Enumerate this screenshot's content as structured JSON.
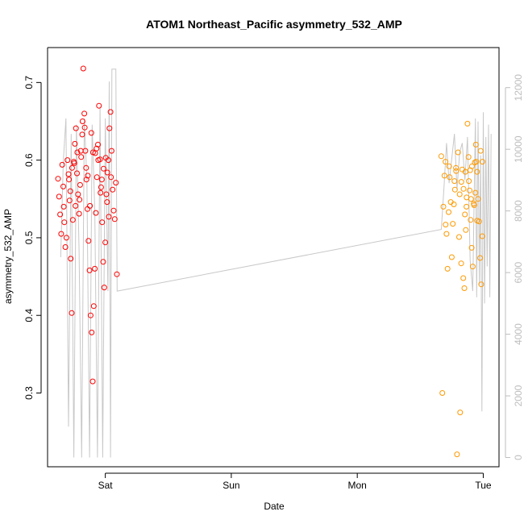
{
  "chart_data": {
    "type": "scatter",
    "title": "ATOM1 Northeast_Pacific asymmetry_532_AMP",
    "xlabel": "Date",
    "ylabel": "asymmetry_532_AMP",
    "x_ticks": [
      {
        "value": "2016-08-13",
        "label": "Sat"
      },
      {
        "value": "2016-08-14",
        "label": "Sun"
      },
      {
        "value": "2016-08-15",
        "label": "Mon"
      },
      {
        "value": "2016-08-16",
        "label": "Tue"
      }
    ],
    "xlim": [
      "2016-08-12T13:00",
      "2016-08-16T03:00"
    ],
    "ylim": [
      0.205,
      0.745
    ],
    "y_ticks": [
      0.3,
      0.4,
      0.5,
      0.6,
      0.7
    ],
    "y2lim": [
      -300,
      13300
    ],
    "y2_ticks": [
      0,
      2000,
      4000,
      6000,
      8000,
      10000,
      12000
    ],
    "grid": false,
    "series": [
      {
        "color": "#ff0000",
        "marker": "open-circle",
        "points": [
          [
            "2016-08-12T15:00",
            0.576
          ],
          [
            "2016-08-12T15:12",
            0.553
          ],
          [
            "2016-08-12T15:24",
            0.53
          ],
          [
            "2016-08-12T15:36",
            0.505
          ],
          [
            "2016-08-12T15:48",
            0.594
          ],
          [
            "2016-08-12T16:00",
            0.566
          ],
          [
            "2016-08-12T16:12",
            0.52
          ],
          [
            "2016-08-12T16:24",
            0.488
          ],
          [
            "2016-08-12T16:36",
            0.5
          ],
          [
            "2016-08-12T16:48",
            0.6
          ],
          [
            "2016-08-12T17:00",
            0.582
          ],
          [
            "2016-08-12T17:12",
            0.548
          ],
          [
            "2016-08-12T17:24",
            0.473
          ],
          [
            "2016-08-12T17:36",
            0.403
          ],
          [
            "2016-08-12T17:48",
            0.523
          ],
          [
            "2016-08-12T18:00",
            0.598
          ],
          [
            "2016-08-12T18:12",
            0.621
          ],
          [
            "2016-08-12T18:24",
            0.641
          ],
          [
            "2016-08-12T18:36",
            0.583
          ],
          [
            "2016-08-12T18:48",
            0.556
          ],
          [
            "2016-08-12T19:00",
            0.531
          ],
          [
            "2016-08-12T19:12",
            0.568
          ],
          [
            "2016-08-12T19:24",
            0.604
          ],
          [
            "2016-08-12T19:36",
            0.633
          ],
          [
            "2016-08-12T19:48",
            0.718
          ],
          [
            "2016-08-12T20:00",
            0.66
          ],
          [
            "2016-08-12T20:12",
            0.612
          ],
          [
            "2016-08-12T20:24",
            0.575
          ],
          [
            "2016-08-12T20:36",
            0.537
          ],
          [
            "2016-08-12T20:48",
            0.496
          ],
          [
            "2016-08-12T21:00",
            0.458
          ],
          [
            "2016-08-12T21:12",
            0.4
          ],
          [
            "2016-08-12T21:24",
            0.378
          ],
          [
            "2016-08-12T21:36",
            0.315
          ],
          [
            "2016-08-12T21:48",
            0.412
          ],
          [
            "2016-08-12T22:00",
            0.46
          ],
          [
            "2016-08-12T22:12",
            0.532
          ],
          [
            "2016-08-12T22:24",
            0.578
          ],
          [
            "2016-08-12T22:36",
            0.62
          ],
          [
            "2016-08-12T22:48",
            0.67
          ],
          [
            "2016-08-12T23:00",
            0.601
          ],
          [
            "2016-08-12T23:12",
            0.565
          ],
          [
            "2016-08-12T23:24",
            0.52
          ],
          [
            "2016-08-12T23:36",
            0.469
          ],
          [
            "2016-08-12T23:48",
            0.436
          ],
          [
            "2016-08-13T00:00",
            0.494
          ],
          [
            "2016-08-13T00:12",
            0.556
          ],
          [
            "2016-08-13T00:24",
            0.584
          ],
          [
            "2016-08-13T00:36",
            0.6
          ],
          [
            "2016-08-13T00:48",
            0.641
          ],
          [
            "2016-08-13T01:00",
            0.662
          ],
          [
            "2016-08-13T01:12",
            0.612
          ],
          [
            "2016-08-13T01:24",
            0.562
          ],
          [
            "2016-08-13T01:36",
            0.535
          ],
          [
            "2016-08-13T01:48",
            0.524
          ],
          [
            "2016-08-13T02:00",
            0.571
          ],
          [
            "2016-08-13T02:12",
            0.453
          ],
          [
            "2016-08-12T16:05",
            0.54
          ],
          [
            "2016-08-12T17:05",
            0.575
          ],
          [
            "2016-08-12T18:05",
            0.596
          ],
          [
            "2016-08-12T19:05",
            0.549
          ],
          [
            "2016-08-12T20:05",
            0.642
          ],
          [
            "2016-08-12T21:05",
            0.541
          ],
          [
            "2016-08-12T22:05",
            0.609
          ],
          [
            "2016-08-12T23:05",
            0.558
          ],
          [
            "2016-08-13T00:05",
            0.603
          ],
          [
            "2016-08-13T01:05",
            0.578
          ],
          [
            "2016-08-12T17:40",
            0.59
          ],
          [
            "2016-08-12T18:40",
            0.61
          ],
          [
            "2016-08-12T19:40",
            0.65
          ],
          [
            "2016-08-12T20:40",
            0.58
          ],
          [
            "2016-08-12T21:40",
            0.61
          ],
          [
            "2016-08-12T22:40",
            0.6
          ],
          [
            "2016-08-12T23:40",
            0.589
          ],
          [
            "2016-08-13T00:40",
            0.527
          ],
          [
            "2016-08-12T17:20",
            0.56
          ],
          [
            "2016-08-12T18:20",
            0.541
          ],
          [
            "2016-08-12T19:20",
            0.612
          ],
          [
            "2016-08-12T20:20",
            0.59
          ],
          [
            "2016-08-12T21:20",
            0.635
          ],
          [
            "2016-08-12T22:20",
            0.615
          ],
          [
            "2016-08-12T23:20",
            0.575
          ],
          [
            "2016-08-13T00:20",
            0.546
          ]
        ]
      },
      {
        "color": "#ff9900",
        "marker": "open-circle",
        "points": [
          [
            "2016-08-15T16:00",
            0.605
          ],
          [
            "2016-08-15T16:12",
            0.3
          ],
          [
            "2016-08-15T16:24",
            0.54
          ],
          [
            "2016-08-15T16:36",
            0.58
          ],
          [
            "2016-08-15T16:48",
            0.598
          ],
          [
            "2016-08-15T17:00",
            0.505
          ],
          [
            "2016-08-15T17:12",
            0.46
          ],
          [
            "2016-08-15T17:24",
            0.533
          ],
          [
            "2016-08-15T17:36",
            0.578
          ],
          [
            "2016-08-15T17:48",
            0.546
          ],
          [
            "2016-08-15T18:00",
            0.475
          ],
          [
            "2016-08-15T18:12",
            0.518
          ],
          [
            "2016-08-15T18:24",
            0.543
          ],
          [
            "2016-08-15T18:36",
            0.562
          ],
          [
            "2016-08-15T18:48",
            0.59
          ],
          [
            "2016-08-15T19:00",
            0.221
          ],
          [
            "2016-08-15T19:12",
            0.61
          ],
          [
            "2016-08-15T19:24",
            0.501
          ],
          [
            "2016-08-15T19:36",
            0.275
          ],
          [
            "2016-08-15T19:48",
            0.467
          ],
          [
            "2016-08-15T20:00",
            0.588
          ],
          [
            "2016-08-15T20:12",
            0.448
          ],
          [
            "2016-08-15T20:24",
            0.435
          ],
          [
            "2016-08-15T20:36",
            0.585
          ],
          [
            "2016-08-15T20:48",
            0.54
          ],
          [
            "2016-08-15T21:00",
            0.647
          ],
          [
            "2016-08-15T21:12",
            0.604
          ],
          [
            "2016-08-15T21:24",
            0.561
          ],
          [
            "2016-08-15T21:36",
            0.523
          ],
          [
            "2016-08-15T21:48",
            0.487
          ],
          [
            "2016-08-15T22:00",
            0.463
          ],
          [
            "2016-08-15T22:12",
            0.544
          ],
          [
            "2016-08-15T22:24",
            0.597
          ],
          [
            "2016-08-15T22:36",
            0.62
          ],
          [
            "2016-08-15T22:48",
            0.585
          ],
          [
            "2016-08-15T23:00",
            0.55
          ],
          [
            "2016-08-15T23:12",
            0.521
          ],
          [
            "2016-08-15T23:24",
            0.474
          ],
          [
            "2016-08-15T23:36",
            0.44
          ],
          [
            "2016-08-15T23:48",
            0.502
          ],
          [
            "2016-08-15T17:30",
            0.592
          ],
          [
            "2016-08-15T18:30",
            0.573
          ],
          [
            "2016-08-15T19:30",
            0.556
          ],
          [
            "2016-08-15T20:30",
            0.53
          ],
          [
            "2016-08-15T21:30",
            0.587
          ],
          [
            "2016-08-15T22:30",
            0.558
          ],
          [
            "2016-08-15T23:30",
            0.612
          ],
          [
            "2016-08-15T16:50",
            0.517
          ],
          [
            "2016-08-15T18:50",
            0.586
          ],
          [
            "2016-08-15T19:50",
            0.572
          ],
          [
            "2016-08-15T20:50",
            0.552
          ],
          [
            "2016-08-15T21:50",
            0.592
          ],
          [
            "2016-08-15T22:50",
            0.522
          ],
          [
            "2016-08-15T23:50",
            0.598
          ],
          [
            "2016-08-15T20:15",
            0.563
          ],
          [
            "2016-08-15T21:15",
            0.573
          ],
          [
            "2016-08-15T22:15",
            0.542
          ],
          [
            "2016-08-15T20:40",
            0.51
          ],
          [
            "2016-08-15T21:40",
            0.55
          ],
          [
            "2016-08-15T22:40",
            0.598
          ]
        ]
      }
    ],
    "overlay_line": {
      "axis": "right",
      "color": "#c8c8c8",
      "points": [
        [
          "2016-08-12T15:30",
          6500
        ],
        [
          "2016-08-12T16:00",
          9600
        ],
        [
          "2016-08-12T16:30",
          11000
        ],
        [
          "2016-08-12T17:00",
          1000
        ],
        [
          "2016-08-12T17:30",
          10500
        ],
        [
          "2016-08-12T18:00",
          0
        ],
        [
          "2016-08-12T18:30",
          10800
        ],
        [
          "2016-08-12T19:00",
          6700
        ],
        [
          "2016-08-12T19:30",
          0
        ],
        [
          "2016-08-12T20:00",
          11000
        ],
        [
          "2016-08-12T20:30",
          9000
        ],
        [
          "2016-08-12T21:00",
          0
        ],
        [
          "2016-08-12T21:30",
          10800
        ],
        [
          "2016-08-12T22:00",
          8000
        ],
        [
          "2016-08-12T22:30",
          0
        ],
        [
          "2016-08-12T23:00",
          11400
        ],
        [
          "2016-08-12T23:30",
          0
        ],
        [
          "2016-08-13T00:00",
          11000
        ],
        [
          "2016-08-13T00:30",
          5400
        ],
        [
          "2016-08-13T00:45",
          12200
        ],
        [
          "2016-08-13T01:00",
          0
        ],
        [
          "2016-08-13T01:15",
          12600
        ],
        [
          "2016-08-13T02:00",
          12600
        ],
        [
          "2016-08-13T02:15",
          5400
        ],
        [
          "2016-08-15T16:00",
          7400
        ],
        [
          "2016-08-15T16:30",
          8700
        ],
        [
          "2016-08-15T17:00",
          10200
        ],
        [
          "2016-08-15T17:30",
          8900
        ],
        [
          "2016-08-15T18:00",
          9700
        ],
        [
          "2016-08-15T18:30",
          10500
        ],
        [
          "2016-08-15T19:00",
          8700
        ],
        [
          "2016-08-15T19:30",
          9900
        ],
        [
          "2016-08-15T20:00",
          10200
        ],
        [
          "2016-08-15T20:30",
          9000
        ],
        [
          "2016-08-15T21:00",
          10400
        ],
        [
          "2016-08-15T21:30",
          6400
        ],
        [
          "2016-08-15T22:00",
          5400
        ],
        [
          "2016-08-15T22:30",
          11000
        ],
        [
          "2016-08-15T22:45",
          5200
        ],
        [
          "2016-08-15T23:00",
          10900
        ],
        [
          "2016-08-15T23:15",
          5600
        ],
        [
          "2016-08-15T23:30",
          9800
        ],
        [
          "2016-08-15T23:45",
          1500
        ],
        [
          "2016-08-16T00:00",
          11200
        ],
        [
          "2016-08-16T00:15",
          5000
        ],
        [
          "2016-08-16T00:30",
          10400
        ],
        [
          "2016-08-16T00:45",
          6200
        ],
        [
          "2016-08-16T01:00",
          10800
        ],
        [
          "2016-08-16T01:15",
          5200
        ],
        [
          "2016-08-16T01:30",
          10500
        ]
      ]
    }
  }
}
